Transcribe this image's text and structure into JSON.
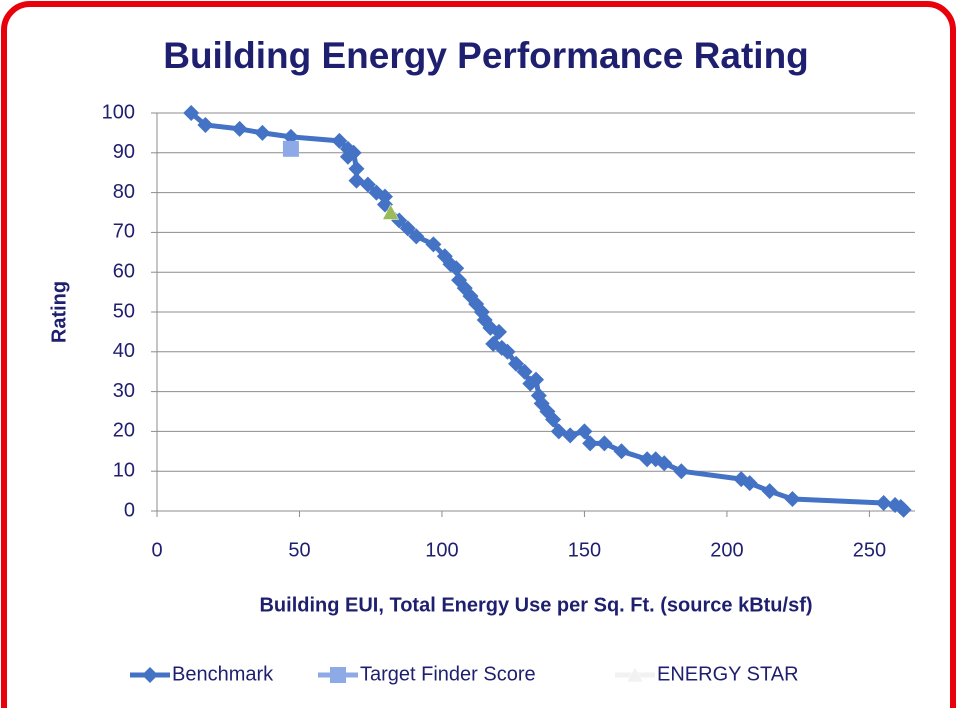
{
  "chart_data": {
    "type": "line",
    "title": "Building Energy Performance Rating",
    "xlabel": "Building EUI, Total Energy Use per Sq. Ft. (source kBtu/sf)",
    "ylabel": "Rating",
    "xlim": [
      0,
      266
    ],
    "xticks": [
      0,
      50,
      100,
      150,
      200,
      250
    ],
    "ylim": [
      0,
      100
    ],
    "yticks": [
      0,
      10,
      20,
      30,
      40,
      50,
      60,
      70,
      80,
      90,
      100
    ],
    "grid": true,
    "legend": "bottom",
    "series": [
      {
        "name": "Benchmark",
        "color": "#4472c4",
        "marker": "diamond",
        "line": true,
        "x": [
          12,
          17,
          29,
          37,
          47,
          64,
          67,
          67,
          69,
          70,
          70,
          74,
          77,
          80,
          80,
          85,
          88,
          91,
          97,
          101,
          103,
          105,
          106,
          108,
          110,
          112,
          114,
          115,
          117,
          120,
          118,
          121,
          123,
          126,
          129,
          131,
          133,
          134,
          135,
          137,
          139,
          141,
          145,
          150,
          152,
          157,
          163,
          172,
          175,
          178,
          184,
          205,
          208,
          215,
          223,
          255,
          259,
          261,
          262
        ],
        "values": [
          100,
          97,
          96,
          95,
          94,
          93,
          91,
          89,
          90,
          86,
          83,
          82,
          80,
          79,
          77,
          73,
          71,
          69,
          67,
          64,
          62,
          61,
          58,
          56,
          54,
          52,
          50,
          48,
          46,
          45,
          42,
          41,
          40,
          37,
          35,
          32,
          33,
          29,
          27,
          25,
          23,
          20,
          19,
          20,
          17,
          17,
          15,
          13,
          13,
          12,
          10,
          8,
          7,
          5,
          3,
          2,
          1.5,
          1,
          0.3
        ]
      },
      {
        "name": "Target Finder Score",
        "color": "#8eaae6",
        "marker": "square",
        "line": false,
        "x": [
          47
        ],
        "values": [
          91
        ]
      },
      {
        "name": "ENERGY STAR",
        "color": "#9bbb59",
        "marker": "triangle",
        "line": false,
        "x": [
          82
        ],
        "values": [
          75
        ]
      }
    ]
  }
}
